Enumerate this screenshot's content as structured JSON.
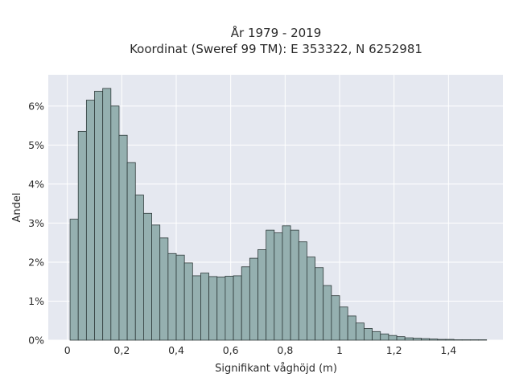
{
  "chart_data": {
    "type": "bar",
    "title": "År 1979 - 2019",
    "subtitle": "Koordinat (Sweref 99 TM): E 353322, N 6252981",
    "xlabel": "Signifikant våghöjd (m)",
    "ylabel": "Andel",
    "xlim": [
      -0.07,
      1.6
    ],
    "ylim": [
      0,
      6.8
    ],
    "x_ticks": [
      0,
      0.2,
      0.4,
      0.6,
      0.8,
      1,
      1.2,
      1.4
    ],
    "x_tick_labels": [
      "0",
      "0,2",
      "0,4",
      "0,6",
      "0,8",
      "1",
      "1,2",
      "1,4"
    ],
    "y_ticks": [
      0,
      1,
      2,
      3,
      4,
      5,
      6
    ],
    "y_tick_labels": [
      "0%",
      "1%",
      "2%",
      "3%",
      "4%",
      "5%",
      "6%"
    ],
    "y_unit": "percent",
    "bin_start": 0.01,
    "bin_width": 0.03,
    "values": [
      3.1,
      5.35,
      6.15,
      6.38,
      6.45,
      6.0,
      5.25,
      4.55,
      3.72,
      3.25,
      2.95,
      2.62,
      2.22,
      2.18,
      1.98,
      1.65,
      1.72,
      1.63,
      1.62,
      1.64,
      1.65,
      1.88,
      2.1,
      2.32,
      2.82,
      2.75,
      2.93,
      2.82,
      2.52,
      2.13,
      1.86,
      1.4,
      1.14,
      0.85,
      0.62,
      0.44,
      0.3,
      0.22,
      0.16,
      0.12,
      0.09,
      0.06,
      0.05,
      0.04,
      0.03,
      0.02,
      0.02,
      0.01,
      0.01,
      0.01,
      0.01
    ],
    "grid": true,
    "colors": {
      "background": "#e5e8f0",
      "bar_fill": "#95b0b0",
      "bar_edge": "#2f3b3b",
      "grid": "#ffffff"
    }
  }
}
